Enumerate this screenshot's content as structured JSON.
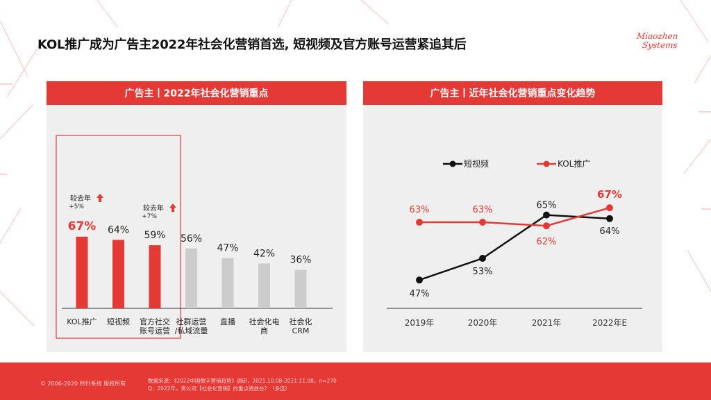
{
  "title": "KOL推广成为广告主2022年社会化营销首选, 短视频及官方账号运营紧追其后",
  "logo": {
    "line1": "Miaozhen",
    "line2": "Systems"
  },
  "left_panel": {
    "header": "广告主丨2022年社会化营销重点"
  },
  "right_panel": {
    "header": "广告主丨近年社会化营销重点变化趋势"
  },
  "chart_data": [
    {
      "type": "bar",
      "title": "广告主丨2022年社会化营销重点",
      "categories": [
        [
          "KOL推广"
        ],
        [
          "短视频"
        ],
        [
          "官方社交",
          "账号运营"
        ],
        [
          "社群运营",
          "/私域流量"
        ],
        [
          "直播"
        ],
        [
          "社会化电",
          "商"
        ],
        [
          "社会化",
          "CRM"
        ]
      ],
      "values": [
        67,
        64,
        59,
        56,
        47,
        42,
        36
      ],
      "value_labels": [
        "67%",
        "64%",
        "59%",
        "56%",
        "47%",
        "42%",
        "36%"
      ],
      "highlighted_count": 3,
      "annotations": [
        {
          "category_index": 0,
          "lines": [
            "较去年",
            "+5%"
          ]
        },
        {
          "category_index": 2,
          "lines": [
            "较去年",
            "+7%"
          ]
        }
      ],
      "colors": {
        "highlight": "#e53935",
        "normal": "#cccccc"
      },
      "ylim": [
        0,
        100
      ]
    },
    {
      "type": "line",
      "title": "广告主丨近年社会化营销重点变化趋势",
      "x": [
        "2019年",
        "2020年",
        "2021年",
        "2022年E"
      ],
      "series": [
        {
          "name": "短视频",
          "values": [
            47,
            53,
            65,
            64
          ],
          "labels": [
            "47%",
            "53%",
            "65%",
            "64%"
          ],
          "color": "#111111"
        },
        {
          "name": "KOL推广",
          "values": [
            63,
            63,
            62,
            67
          ],
          "labels": [
            "63%",
            "63%",
            "62%",
            "67%"
          ],
          "color": "#e53935"
        }
      ],
      "ylim": [
        40,
        70
      ],
      "legend": "top"
    }
  ],
  "footer": {
    "copyright": "© 2006-2020 秒针系统 版权所有",
    "source_line1": "数据来源：《2022中国数字营销趋势》调研，2021.10.08-2021.11.08，n=270",
    "source_line2": "Q：2022年，贵公司【社会化营销】的重点将放在？（多选）"
  }
}
